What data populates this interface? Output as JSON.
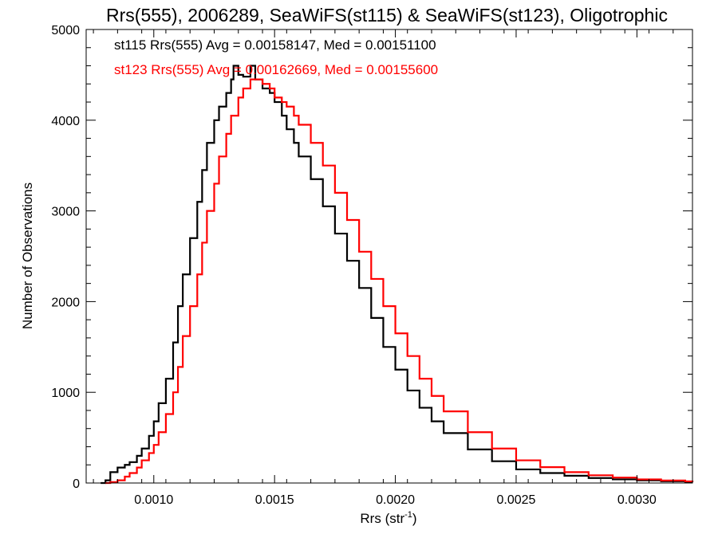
{
  "chart_data": {
    "type": "line",
    "title": "Rrs(555), 2006289, SeaWiFS(st115) & SeaWiFS(st123), Oligotrophic",
    "xlabel": "Rrs (str",
    "xlabel_sup": "-1",
    "xlabel_close": ")",
    "ylabel": "Number of Observations",
    "xlim": [
      0.00072,
      0.00323
    ],
    "ylim": [
      0,
      5000
    ],
    "x_ticks": [
      0.001,
      0.0015,
      0.002,
      0.0025,
      0.003
    ],
    "x_tick_labels": [
      "0.0010",
      "0.0015",
      "0.0020",
      "0.0025",
      "0.0030"
    ],
    "y_ticks": [
      0,
      1000,
      2000,
      3000,
      4000,
      5000
    ],
    "y_tick_labels": [
      "0",
      "1000",
      "2000",
      "3000",
      "4000",
      "5000"
    ],
    "grid": false,
    "annotations": [
      {
        "text": "st115 Rrs(555) Avg = 0.00158147, Med = 0.00151100",
        "color": "#000000"
      },
      {
        "text": "st123 Rrs(555) Avg = 0.00162669, Med = 0.00155600",
        "color": "#ff0000"
      }
    ],
    "series": [
      {
        "color": "#000000",
        "x": [
          0.00078,
          0.0008,
          0.00082,
          0.00085,
          0.00088,
          0.0009,
          0.00093,
          0.00095,
          0.00098,
          0.001,
          0.00102,
          0.00105,
          0.00108,
          0.0011,
          0.00112,
          0.00115,
          0.00118,
          0.0012,
          0.00122,
          0.00125,
          0.00127,
          0.0013,
          0.00132,
          0.00133,
          0.00135,
          0.00137,
          0.0014,
          0.00142,
          0.00145,
          0.00148,
          0.0015,
          0.00153,
          0.00155,
          0.00158,
          0.0016,
          0.00165,
          0.0017,
          0.00175,
          0.0018,
          0.00185,
          0.0019,
          0.00195,
          0.002,
          0.00205,
          0.0021,
          0.00215,
          0.0022,
          0.0023,
          0.0024,
          0.0025,
          0.0026,
          0.0027,
          0.0028,
          0.0029,
          0.003,
          0.0031,
          0.0032,
          0.00323
        ],
        "y": [
          0,
          30,
          120,
          170,
          200,
          230,
          300,
          380,
          520,
          680,
          880,
          1150,
          1550,
          1950,
          2300,
          2700,
          3100,
          3450,
          3750,
          4000,
          4150,
          4300,
          4450,
          4600,
          4500,
          4480,
          4600,
          4450,
          4350,
          4300,
          4200,
          4050,
          3900,
          3750,
          3600,
          3350,
          3050,
          2750,
          2450,
          2150,
          1820,
          1500,
          1250,
          1020,
          830,
          680,
          550,
          370,
          240,
          150,
          110,
          80,
          55,
          40,
          30,
          20,
          12,
          10
        ]
      },
      {
        "color": "#ff0000",
        "x": [
          0.0008,
          0.00082,
          0.00085,
          0.00088,
          0.0009,
          0.00093,
          0.00095,
          0.00098,
          0.001,
          0.00102,
          0.00105,
          0.00108,
          0.0011,
          0.00112,
          0.00115,
          0.00118,
          0.0012,
          0.00122,
          0.00125,
          0.00127,
          0.0013,
          0.00132,
          0.00135,
          0.00137,
          0.0014,
          0.00142,
          0.00145,
          0.00148,
          0.0015,
          0.00153,
          0.00155,
          0.00158,
          0.0016,
          0.00165,
          0.0017,
          0.00175,
          0.0018,
          0.00185,
          0.0019,
          0.00195,
          0.002,
          0.00205,
          0.0021,
          0.00215,
          0.0022,
          0.0023,
          0.0024,
          0.0025,
          0.0026,
          0.0027,
          0.0028,
          0.0029,
          0.003,
          0.0031,
          0.0032,
          0.00323
        ],
        "y": [
          0,
          10,
          30,
          70,
          110,
          170,
          250,
          330,
          420,
          560,
          760,
          1000,
          1280,
          1620,
          1950,
          2300,
          2650,
          3000,
          3300,
          3600,
          3850,
          4050,
          4250,
          4350,
          4450,
          4450,
          4400,
          4350,
          4250,
          4200,
          4150,
          4050,
          3950,
          3750,
          3500,
          3200,
          2900,
          2550,
          2250,
          1950,
          1650,
          1400,
          1150,
          960,
          790,
          560,
          380,
          250,
          175,
          120,
          85,
          60,
          40,
          28,
          18,
          12
        ]
      }
    ]
  }
}
